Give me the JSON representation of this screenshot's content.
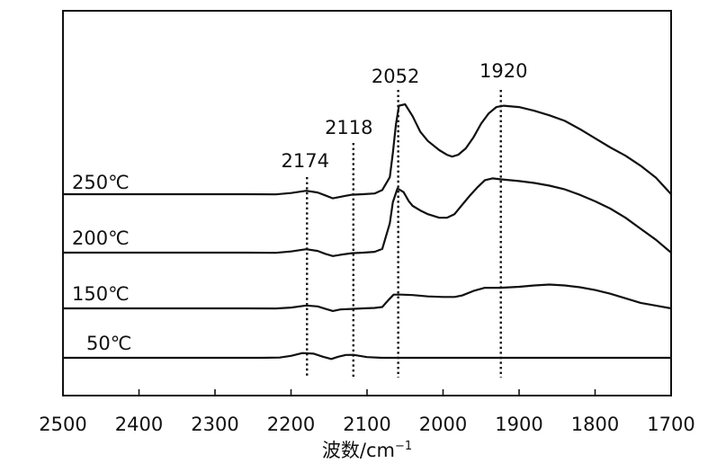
{
  "chart_data": {
    "type": "line",
    "title": "",
    "xlabel": "波数/cm",
    "xlabel_superscript": "−1",
    "ylabel": "",
    "xlim": [
      2500,
      1700
    ],
    "x_reversed": true,
    "x_ticks": [
      "2500",
      "2400",
      "2300",
      "2200",
      "2100",
      "2000",
      "1900",
      "1800",
      "1700"
    ],
    "y_ticks_shown": false,
    "grid": false,
    "legend": "none",
    "series_offset_stacked": true,
    "peaks": [
      {
        "label": "2174",
        "x": 2179
      },
      {
        "label": "2118",
        "x": 2118
      },
      {
        "label": "2052",
        "x": 2059
      },
      {
        "label": "1920",
        "x": 1924
      }
    ],
    "series": [
      {
        "name": "250℃",
        "points": [
          [
            2500,
            0
          ],
          [
            2260,
            0
          ],
          [
            2220,
            -0.2
          ],
          [
            2200,
            1.3
          ],
          [
            2180,
            3.7
          ],
          [
            2165,
            1.9
          ],
          [
            2155,
            -1.3
          ],
          [
            2145,
            -4.5
          ],
          [
            2135,
            -2.8
          ],
          [
            2120,
            -0.6
          ],
          [
            2105,
            0
          ],
          [
            2090,
            0.8
          ],
          [
            2080,
            4.5
          ],
          [
            2070,
            18.5
          ],
          [
            2066,
            45
          ],
          [
            2062,
            76
          ],
          [
            2058,
            96.5
          ],
          [
            2050,
            98
          ],
          [
            2040,
            85
          ],
          [
            2030,
            68
          ],
          [
            2020,
            58
          ],
          [
            2005,
            48
          ],
          [
            1995,
            43
          ],
          [
            1988,
            41
          ],
          [
            1980,
            43
          ],
          [
            1970,
            50
          ],
          [
            1960,
            62
          ],
          [
            1950,
            77
          ],
          [
            1940,
            88
          ],
          [
            1930,
            95
          ],
          [
            1920,
            96.5
          ],
          [
            1900,
            95
          ],
          [
            1880,
            91
          ],
          [
            1860,
            86
          ],
          [
            1840,
            80
          ],
          [
            1820,
            71
          ],
          [
            1800,
            61
          ],
          [
            1780,
            51
          ],
          [
            1760,
            42
          ],
          [
            1740,
            31
          ],
          [
            1720,
            18
          ],
          [
            1700,
            0
          ]
        ]
      },
      {
        "name": "200℃",
        "points": [
          [
            2500,
            0
          ],
          [
            2260,
            0
          ],
          [
            2220,
            -0.2
          ],
          [
            2200,
            1.3
          ],
          [
            2180,
            3.7
          ],
          [
            2165,
            1.9
          ],
          [
            2155,
            -1.3
          ],
          [
            2145,
            -3.7
          ],
          [
            2135,
            -2.4
          ],
          [
            2120,
            -0.6
          ],
          [
            2105,
            0
          ],
          [
            2090,
            0.9
          ],
          [
            2080,
            4
          ],
          [
            2070,
            32
          ],
          [
            2066,
            55
          ],
          [
            2060,
            70
          ],
          [
            2052,
            66
          ],
          [
            2045,
            56
          ],
          [
            2040,
            51
          ],
          [
            2030,
            46
          ],
          [
            2020,
            42
          ],
          [
            2005,
            38
          ],
          [
            1995,
            38
          ],
          [
            1985,
            42
          ],
          [
            1975,
            52
          ],
          [
            1965,
            62
          ],
          [
            1955,
            71
          ],
          [
            1945,
            79
          ],
          [
            1935,
            81
          ],
          [
            1925,
            80
          ],
          [
            1900,
            78
          ],
          [
            1880,
            76
          ],
          [
            1860,
            73
          ],
          [
            1840,
            69
          ],
          [
            1820,
            63
          ],
          [
            1800,
            56
          ],
          [
            1780,
            48
          ],
          [
            1760,
            38
          ],
          [
            1740,
            26
          ],
          [
            1720,
            14
          ],
          [
            1700,
            0
          ]
        ]
      },
      {
        "name": "150℃",
        "points": [
          [
            2500,
            0
          ],
          [
            2260,
            0
          ],
          [
            2220,
            -0.1
          ],
          [
            2200,
            0.9
          ],
          [
            2180,
            3.1
          ],
          [
            2165,
            2.2
          ],
          [
            2155,
            -0.4
          ],
          [
            2145,
            -2.8
          ],
          [
            2135,
            -1.2
          ],
          [
            2120,
            -0.6
          ],
          [
            2105,
            0
          ],
          [
            2090,
            0.5
          ],
          [
            2080,
            1.5
          ],
          [
            2072,
            9
          ],
          [
            2065,
            15
          ],
          [
            2055,
            15
          ],
          [
            2040,
            14.5
          ],
          [
            2020,
            13
          ],
          [
            2000,
            12.5
          ],
          [
            1985,
            12.5
          ],
          [
            1975,
            14
          ],
          [
            1960,
            19
          ],
          [
            1945,
            22.5
          ],
          [
            1925,
            22.5
          ],
          [
            1900,
            23.5
          ],
          [
            1880,
            25
          ],
          [
            1860,
            26
          ],
          [
            1840,
            25
          ],
          [
            1820,
            23
          ],
          [
            1800,
            20
          ],
          [
            1780,
            16
          ],
          [
            1760,
            11
          ],
          [
            1740,
            6
          ],
          [
            1720,
            3
          ],
          [
            1700,
            0
          ]
        ]
      },
      {
        "name": "50℃",
        "points": [
          [
            2500,
            0
          ],
          [
            2240,
            0
          ],
          [
            2215,
            0.3
          ],
          [
            2200,
            2.2
          ],
          [
            2185,
            5.2
          ],
          [
            2170,
            4.5
          ],
          [
            2158,
            1.2
          ],
          [
            2147,
            -1.3
          ],
          [
            2138,
            1.2
          ],
          [
            2128,
            3.1
          ],
          [
            2118,
            3.2
          ],
          [
            2100,
            0.8
          ],
          [
            2080,
            0
          ],
          [
            2000,
            0
          ],
          [
            1900,
            0
          ],
          [
            1800,
            0
          ],
          [
            1700,
            0
          ]
        ]
      }
    ]
  }
}
